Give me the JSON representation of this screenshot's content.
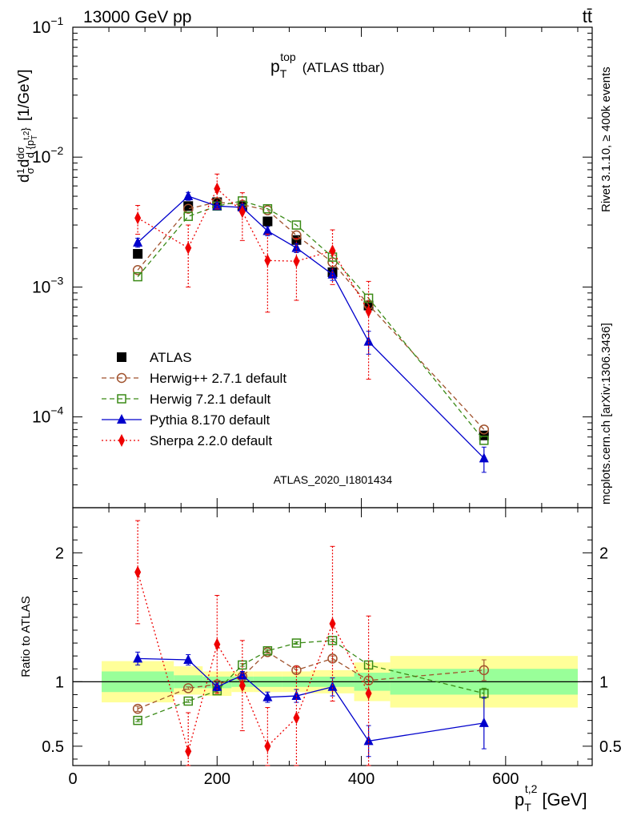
{
  "header": {
    "energy": "13000 GeV pp",
    "process": "tt̄"
  },
  "title": {
    "main": "p",
    "sub": "T",
    "sup": "top",
    "rest": "(ATLAS ttbar)"
  },
  "side_text": {
    "rivet": "Rivet 3.1.10, ≥ 400k events",
    "mcplots": "mcplots.cern.ch [arXiv:1306.3436]"
  },
  "watermark": "ATLAS_2020_I1801434",
  "y_label_top": "d(1/σ) dσ/d{p_T^{t,2}} [1/GeV]",
  "y_label_bottom": "Ratio to ATLAS",
  "x_label": {
    "main": "p",
    "sub": "T",
    "sup": "t,2",
    "unit": "[GeV]"
  },
  "chart_data": [
    {
      "type": "scatter",
      "panel": "main",
      "yscale": "log",
      "ylim": [
        2e-05,
        0.1
      ],
      "xlim": [
        0,
        720
      ],
      "x_ticks": [
        0,
        200,
        400,
        600
      ],
      "y_ticks": [
        {
          "value": 0.0001,
          "base": "10",
          "exp": "−4"
        },
        {
          "value": 0.001,
          "base": "10",
          "exp": "−3"
        },
        {
          "value": 0.01,
          "base": "10",
          "exp": "−2"
        },
        {
          "value": 0.1,
          "base": "10",
          "exp": "−1"
        }
      ],
      "legend": [
        {
          "label": "ATLAS",
          "color": "#000000",
          "marker": "square-filled",
          "line": "none"
        },
        {
          "label": "Herwig++ 2.7.1 default",
          "color": "#a0522d",
          "marker": "circle-open",
          "line": "dashed"
        },
        {
          "label": "Herwig 7.2.1 default",
          "color": "#3a8a16",
          "marker": "square-open",
          "line": "dashed"
        },
        {
          "label": "Pythia 8.170 default",
          "color": "#0000cc",
          "marker": "triangle-filled",
          "line": "solid"
        },
        {
          "label": "Sherpa 2.2.0 default",
          "color": "#ee0000",
          "marker": "diamond-filled",
          "line": "dotted"
        }
      ],
      "legend_position": "lower-left",
      "data_bins": [
        [
          40,
          140
        ],
        [
          140,
          180
        ],
        [
          180,
          220
        ],
        [
          220,
          250
        ],
        [
          250,
          290
        ],
        [
          290,
          330
        ],
        [
          330,
          390
        ],
        [
          390,
          440
        ],
        [
          440,
          700
        ]
      ],
      "x": [
        90,
        160,
        200,
        235,
        270,
        310,
        360,
        410,
        570
      ],
      "series": [
        {
          "name": "ATLAS",
          "values": [
            0.0018,
            0.0042,
            0.0045,
            0.0042,
            0.0032,
            0.0023,
            0.0013,
            0.00072,
            7.2e-05
          ]
        },
        {
          "name": "Herwig++ 2.7.1 default",
          "values": [
            0.00135,
            0.004,
            0.0045,
            0.0043,
            0.0039,
            0.0025,
            0.00155,
            0.00073,
            8e-05
          ]
        },
        {
          "name": "Herwig 7.2.1 default",
          "values": [
            0.0012,
            0.0035,
            0.0042,
            0.0046,
            0.004,
            0.003,
            0.0017,
            0.00082,
            6.6e-05
          ]
        },
        {
          "name": "Pythia 8.170 default",
          "values": [
            0.0022,
            0.005,
            0.0042,
            0.0041,
            0.0027,
            0.002,
            0.00125,
            0.00038,
            4.8e-05
          ],
          "err_rel": [
            0.08,
            0.07,
            0.06,
            0.06,
            0.08,
            0.08,
            0.1,
            0.2,
            0.22
          ]
        },
        {
          "name": "Sherpa 2.2.0 default",
          "values": [
            0.0034,
            0.002,
            0.0057,
            0.0038,
            0.0016,
            0.00158,
            0.0019,
            0.00065,
            null
          ],
          "err_rel": [
            0.25,
            0.5,
            0.3,
            0.4,
            0.6,
            0.5,
            0.45,
            0.7,
            0
          ]
        }
      ]
    },
    {
      "type": "scatter",
      "panel": "ratio",
      "ylim": [
        0.35,
        2.35
      ],
      "xlim": [
        0,
        720
      ],
      "x_ticks": [
        0,
        200,
        400,
        600
      ],
      "y_ticks": [
        0.5,
        1,
        2
      ],
      "reference": 1,
      "bands": [
        {
          "x": [
            40,
            140
          ],
          "green": [
            0.92,
            1.08
          ],
          "yellow": [
            0.84,
            1.16
          ]
        },
        {
          "x": [
            140,
            180
          ],
          "green": [
            0.95,
            1.05
          ],
          "yellow": [
            0.9,
            1.12
          ]
        },
        {
          "x": [
            180,
            220
          ],
          "green": [
            0.95,
            1.04
          ],
          "yellow": [
            0.89,
            1.08
          ]
        },
        {
          "x": [
            220,
            250
          ],
          "green": [
            0.96,
            1.04
          ],
          "yellow": [
            0.92,
            1.08
          ]
        },
        {
          "x": [
            250,
            290
          ],
          "green": [
            0.96,
            1.04
          ],
          "yellow": [
            0.92,
            1.08
          ]
        },
        {
          "x": [
            290,
            330
          ],
          "green": [
            0.96,
            1.04
          ],
          "yellow": [
            0.92,
            1.08
          ]
        },
        {
          "x": [
            330,
            390
          ],
          "green": [
            0.96,
            1.04
          ],
          "yellow": [
            0.91,
            1.09
          ]
        },
        {
          "x": [
            390,
            440
          ],
          "green": [
            0.93,
            1.07
          ],
          "yellow": [
            0.85,
            1.15
          ]
        },
        {
          "x": [
            440,
            700
          ],
          "green": [
            0.9,
            1.1
          ],
          "yellow": [
            0.8,
            1.2
          ]
        }
      ],
      "x": [
        90,
        160,
        200,
        235,
        270,
        310,
        360,
        410,
        570
      ],
      "series": [
        {
          "name": "Herwig++ 2.7.1 default",
          "values": [
            0.79,
            0.95,
            0.98,
            1.04,
            1.23,
            1.09,
            1.18,
            1.01,
            1.09
          ],
          "err": [
            0.02,
            0.01,
            0.01,
            0.01,
            0.01,
            0.02,
            0.02,
            0.03,
            0.08
          ]
        },
        {
          "name": "Herwig 7.2.1 default",
          "values": [
            0.7,
            0.85,
            0.93,
            1.13,
            1.24,
            1.3,
            1.32,
            1.13,
            0.91
          ],
          "err": [
            0.01,
            0.01,
            0.01,
            0.01,
            0.01,
            0.01,
            0.01,
            0.03,
            0.04
          ]
        },
        {
          "name": "Pythia 8.170 default",
          "values": [
            1.18,
            1.17,
            0.96,
            1.05,
            0.88,
            0.89,
            0.96,
            0.54,
            0.68
          ],
          "err": [
            0.05,
            0.04,
            0.03,
            0.03,
            0.04,
            0.05,
            0.07,
            0.12,
            0.2
          ]
        },
        {
          "name": "Sherpa 2.2.0 default",
          "values": [
            1.85,
            0.46,
            1.29,
            0.97,
            0.5,
            0.72,
            1.45,
            0.91,
            null
          ],
          "err": [
            0.4,
            0.3,
            0.38,
            0.35,
            0.3,
            0.4,
            0.6,
            0.6,
            0
          ]
        }
      ]
    }
  ]
}
